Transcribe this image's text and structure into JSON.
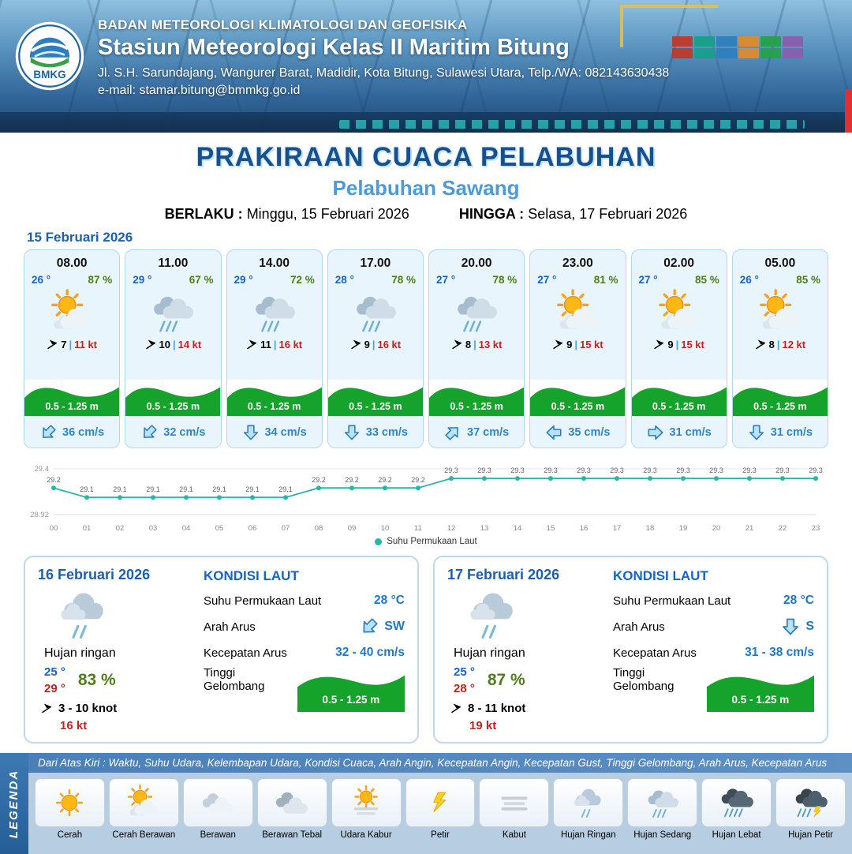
{
  "header": {
    "logo_text": "BMKG",
    "agency": "BADAN METEOROLOGI KLIMATOLOGI DAN GEOFISIKA",
    "station": "Stasiun Meteorologi Kelas II Maritim Bitung",
    "address": "Jl. S.H. Sarundajang, Wangurer Barat, Madidir, Kota Bitung, Sulawesi Utara, Telp./WA: 082143630438",
    "email": "e-mail: stamar.bitung@bmmkg.go.id"
  },
  "title": {
    "main": "PRAKIRAAN CUACA PELABUHAN",
    "subtitle": "Pelabuhan Sawang",
    "valid_from_label": "BERLAKU :",
    "valid_from": "Minggu, 15 Februari 2026",
    "valid_to_label": "HINGGA :",
    "valid_to": "Selasa, 17 Februari 2026"
  },
  "forecast": {
    "date": "15 Februari 2026",
    "cards": [
      {
        "time": "08.00",
        "temp": "26 °",
        "humidity": "87 %",
        "weather_icon": "cerah-berawan",
        "wind": "7",
        "divider": "|",
        "gust": "11 kt",
        "wave": "0.5 - 1.25 m",
        "current": "36 cm/s",
        "current_dir": "sw"
      },
      {
        "time": "11.00",
        "temp": "29 °",
        "humidity": "67 %",
        "weather_icon": "hujan-sedang",
        "wind": "10",
        "divider": "|",
        "gust": "14 kt",
        "wave": "0.5 - 1.25 m",
        "current": "32 cm/s",
        "current_dir": "sw"
      },
      {
        "time": "14.00",
        "temp": "29 °",
        "humidity": "72 %",
        "weather_icon": "hujan-sedang",
        "wind": "11",
        "divider": "|",
        "gust": "16 kt",
        "wave": "0.5 - 1.25 m",
        "current": "34 cm/s",
        "current_dir": "s"
      },
      {
        "time": "17.00",
        "temp": "28 °",
        "humidity": "78 %",
        "weather_icon": "hujan-sedang",
        "wind": "9",
        "divider": "|",
        "gust": "16 kt",
        "wave": "0.5 - 1.25 m",
        "current": "33 cm/s",
        "current_dir": "s"
      },
      {
        "time": "20.00",
        "temp": "27 °",
        "humidity": "78 %",
        "weather_icon": "hujan-sedang",
        "wind": "8",
        "divider": "|",
        "gust": "13 kt",
        "wave": "0.5 - 1.25 m",
        "current": "37 cm/s",
        "current_dir": "ne"
      },
      {
        "time": "23.00",
        "temp": "27 °",
        "humidity": "81 %",
        "weather_icon": "cerah-berawan",
        "wind": "9",
        "divider": "|",
        "gust": "15 kt",
        "wave": "0.5 - 1.25 m",
        "current": "35 cm/s",
        "current_dir": "w"
      },
      {
        "time": "02.00",
        "temp": "27 °",
        "humidity": "85 %",
        "weather_icon": "cerah-berawan",
        "wind": "9",
        "divider": "|",
        "gust": "15 kt",
        "wave": "0.5 - 1.25 m",
        "current": "31 cm/s",
        "current_dir": "e"
      },
      {
        "time": "05.00",
        "temp": "26 °",
        "humidity": "85 %",
        "weather_icon": "cerah-berawan",
        "wind": "8",
        "divider": "|",
        "gust": "12 kt",
        "wave": "0.5 - 1.25 m",
        "current": "31 cm/s",
        "current_dir": "s"
      }
    ]
  },
  "chart_data": {
    "type": "line",
    "legend": "Suhu Permukaan Laut",
    "line_color": "#29b6a8",
    "x": [
      "00",
      "01",
      "02",
      "03",
      "04",
      "05",
      "06",
      "07",
      "08",
      "09",
      "10",
      "11",
      "12",
      "13",
      "14",
      "15",
      "16",
      "17",
      "18",
      "19",
      "20",
      "21",
      "22",
      "23"
    ],
    "values": [
      29.2,
      29.1,
      29.1,
      29.1,
      29.1,
      29.1,
      29.1,
      29.1,
      29.2,
      29.2,
      29.2,
      29.2,
      29.3,
      29.3,
      29.3,
      29.3,
      29.3,
      29.3,
      29.3,
      29.3,
      29.3,
      29.3,
      29.3,
      29.3
    ],
    "ylim": [
      28.92,
      29.4
    ],
    "y_axis_labels": [
      "29.4",
      "28.92"
    ],
    "grid": "top-bottom-lines",
    "legend_position": "bottom"
  },
  "daily": [
    {
      "date": "16 Februari 2026",
      "weather_icon": "hujan-ringan",
      "weather_label": "Hujan ringan",
      "temp_min": "25 °",
      "temp_max": "29 °",
      "humidity": "83 %",
      "wind": "3  - 10 knot",
      "gust": "16 kt",
      "sea": {
        "title": "KONDISI LAUT",
        "sst_label": "Suhu Permukaan Laut",
        "sst": "28 °C",
        "current_dir_label": "Arah Arus",
        "current_dir": "SW",
        "current_dir_icon": "sw",
        "current_speed_label": "Kecepatan Arus",
        "current_speed": "32 - 40 cm/s",
        "wave_label": "Tinggi Gelombang",
        "wave": "0.5 - 1.25 m"
      }
    },
    {
      "date": "17 Februari 2026",
      "weather_icon": "hujan-ringan",
      "weather_label": "Hujan ringan",
      "temp_min": "25 °",
      "temp_max": "28 °",
      "humidity": "87 %",
      "wind": "8  - 11 knot",
      "gust": "19 kt",
      "sea": {
        "title": "KONDISI LAUT",
        "sst_label": "Suhu Permukaan Laut",
        "sst": "28 °C",
        "current_dir_label": "Arah Arus",
        "current_dir": "S",
        "current_dir_icon": "s",
        "current_speed_label": "Kecepatan Arus",
        "current_speed": "31 - 38 cm/s",
        "wave_label": "Tinggi Gelombang",
        "wave": "0.5 - 1.25 m"
      }
    }
  ],
  "legend": {
    "title": "LEGENDA",
    "description": "Dari Atas Kiri : Waktu, Suhu Udara, Kelembapan Udara, Kondisi Cuaca, Arah Angin, Kecepatan Angin, Kecepatan Gust, Tinggi Gelombang, Arah Arus, Kecepatan Arus",
    "items": [
      {
        "label": "Cerah",
        "icon": "cerah"
      },
      {
        "label": "Cerah Berawan",
        "icon": "cerah-berawan"
      },
      {
        "label": "Berawan",
        "icon": "berawan"
      },
      {
        "label": "Berawan Tebal",
        "icon": "berawan-tebal"
      },
      {
        "label": "Udara Kabur",
        "icon": "udara-kabur"
      },
      {
        "label": "Petir",
        "icon": "petir"
      },
      {
        "label": "Kabut",
        "icon": "kabut"
      },
      {
        "label": "Hujan Ringan",
        "icon": "hujan-ringan"
      },
      {
        "label": "Hujan Sedang",
        "icon": "hujan-sedang"
      },
      {
        "label": "Hujan Lebat",
        "icon": "hujan-lebat"
      },
      {
        "label": "Hujan Petir",
        "icon": "hujan-petir"
      }
    ]
  }
}
